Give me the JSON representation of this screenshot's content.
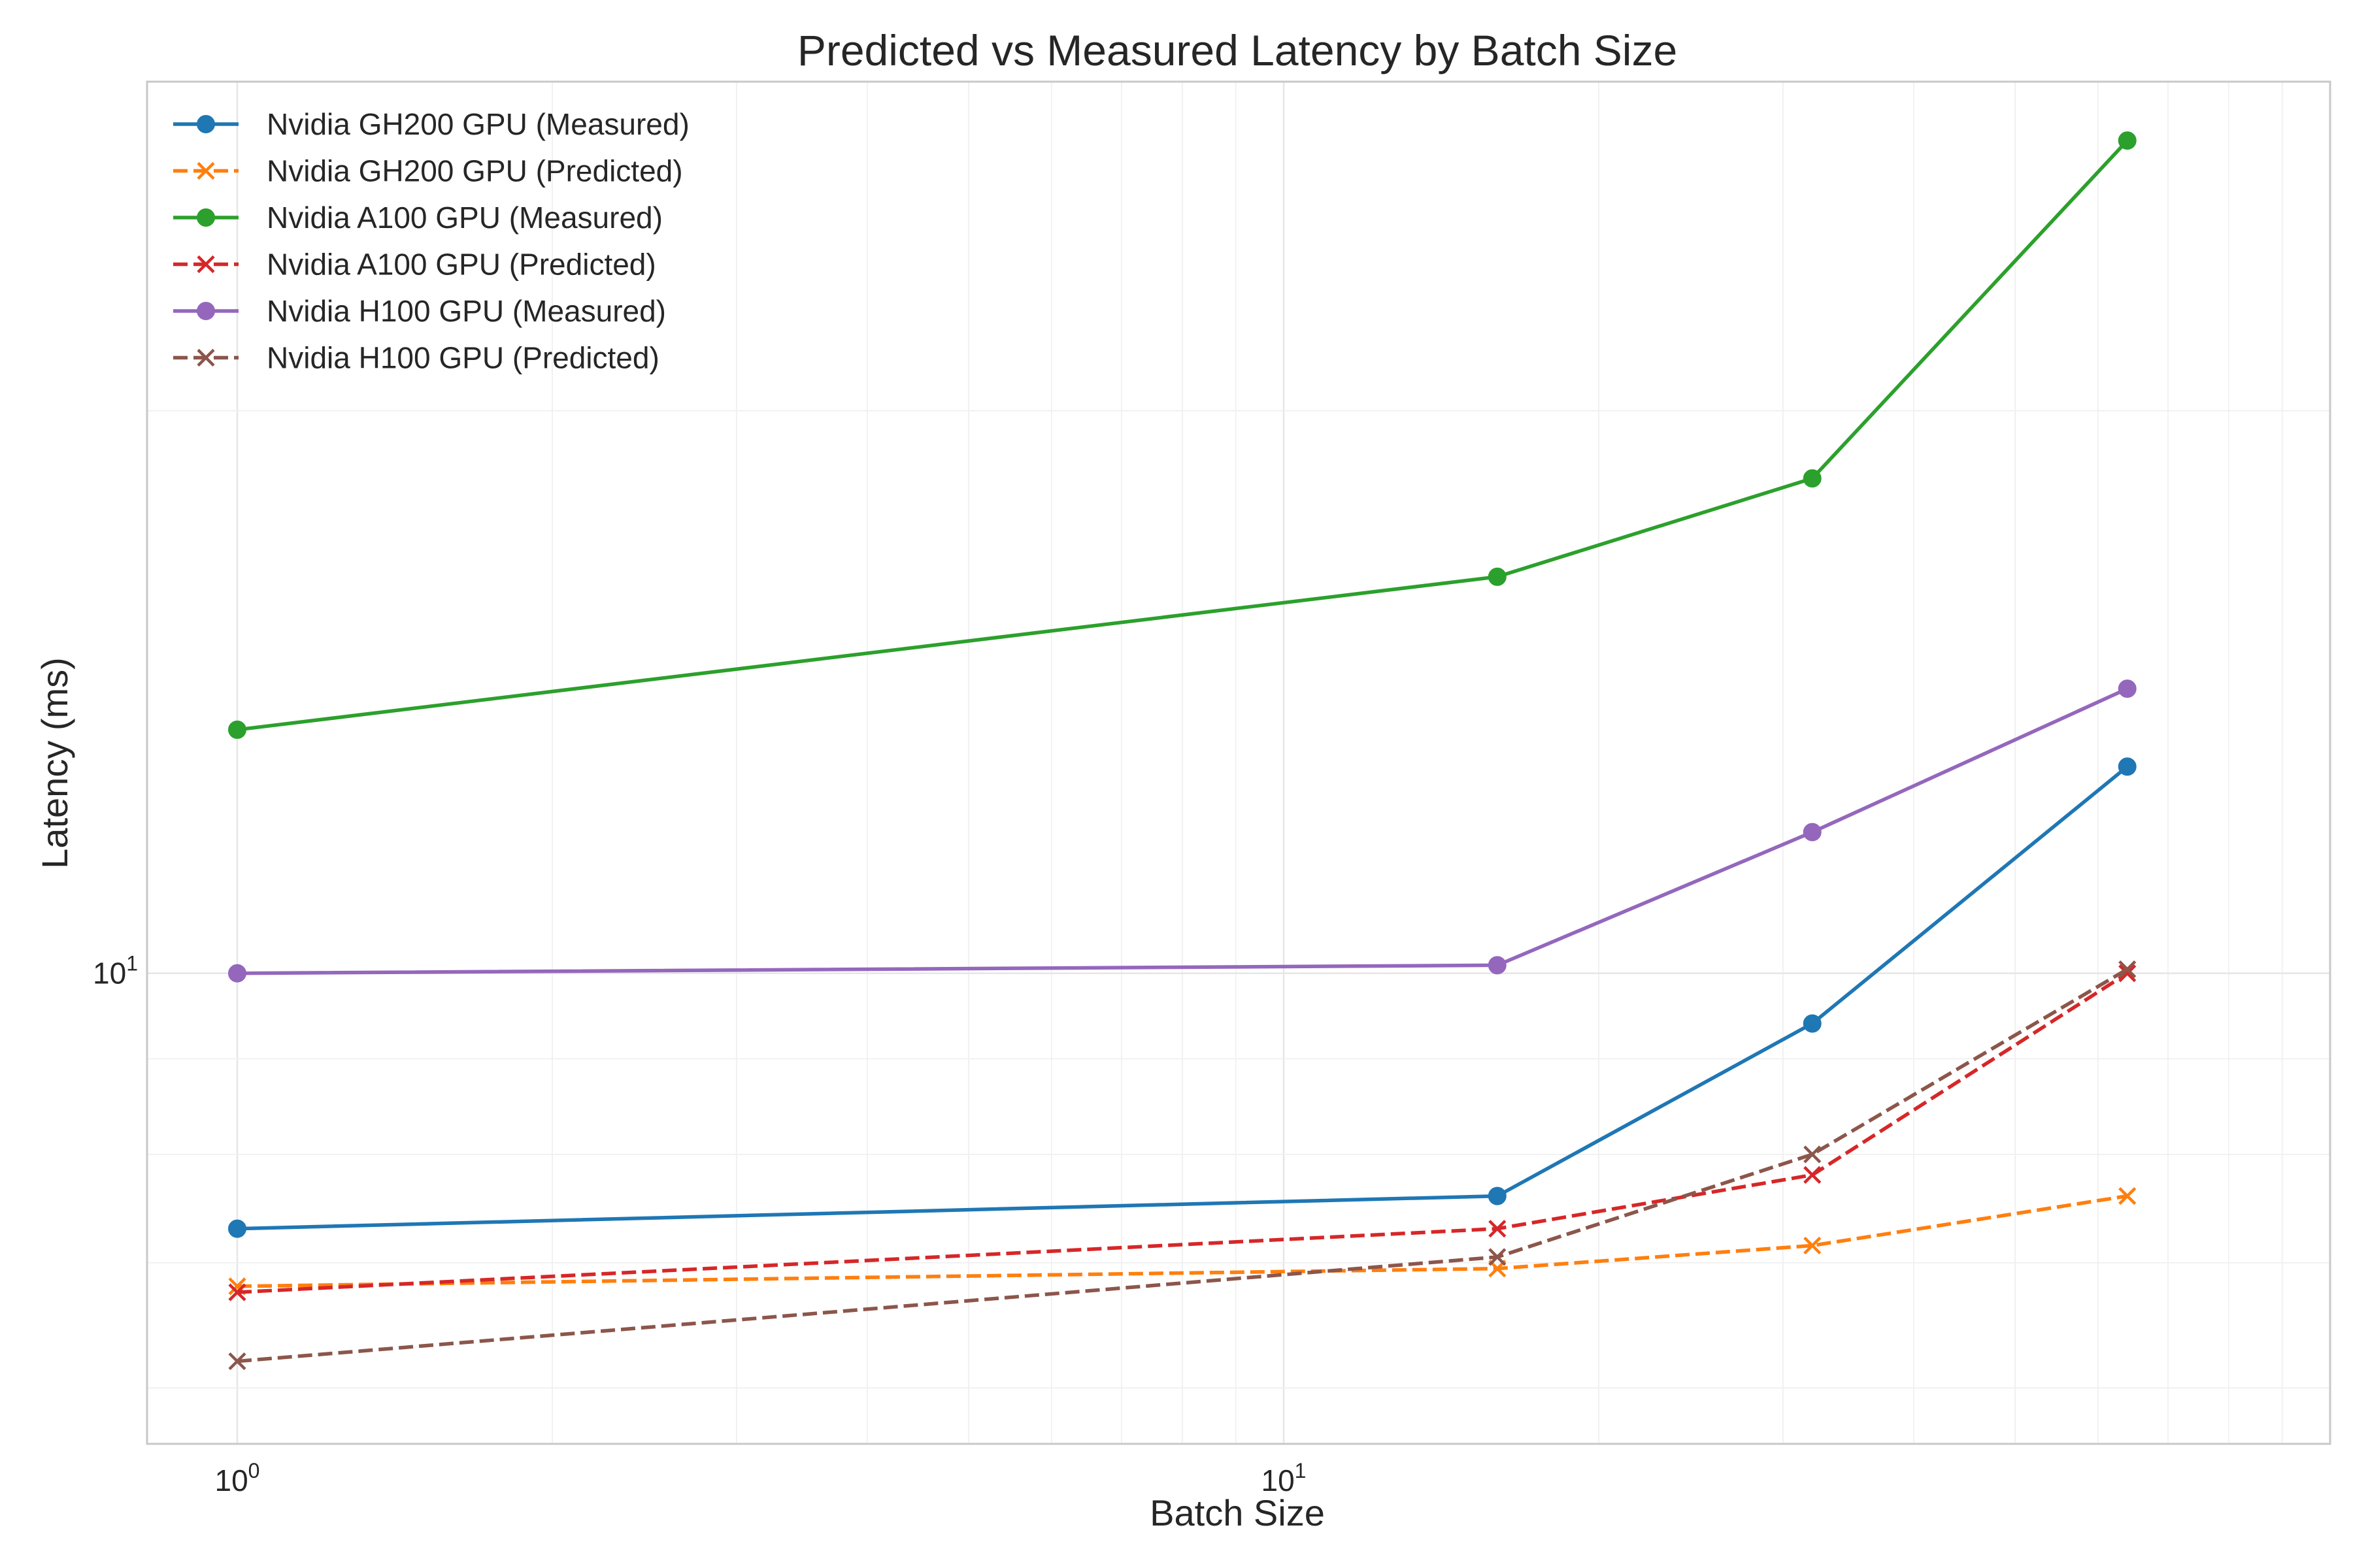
{
  "chart_data": {
    "type": "line",
    "title": "Predicted vs Measured Latency by Batch Size",
    "xlabel": "Batch Size",
    "ylabel": "Latency (ms)",
    "xscale": "log",
    "yscale": "log",
    "xlim": [
      0.82,
      100
    ],
    "ylim": [
      5.6,
      30
    ],
    "x_tick_labels": [
      {
        "value": 1,
        "base": "10",
        "exp": "0"
      },
      {
        "value": 10,
        "base": "10",
        "exp": "1"
      }
    ],
    "y_tick_labels": [
      {
        "value": 10,
        "base": "10",
        "exp": "1"
      }
    ],
    "grid": true,
    "legend_position": "top-left",
    "x": [
      1,
      16,
      32,
      64
    ],
    "series": [
      {
        "name": "Nvidia GH200 GPU (Measured)",
        "color": "#1f77b4",
        "linestyle": "solid",
        "marker": "circle",
        "values": [
          7.3,
          7.6,
          9.4,
          12.9
        ]
      },
      {
        "name": "Nvidia GH200 GPU (Predicted)",
        "color": "#ff7f0e",
        "linestyle": "dashed",
        "marker": "x",
        "values": [
          6.8,
          6.95,
          7.15,
          7.6
        ]
      },
      {
        "name": "Nvidia A100 GPU (Measured)",
        "color": "#2ca02c",
        "linestyle": "solid",
        "marker": "circle",
        "values": [
          13.5,
          16.3,
          18.4,
          27.9
        ]
      },
      {
        "name": "Nvidia A100 GPU (Predicted)",
        "color": "#d62728",
        "linestyle": "dashed",
        "marker": "x",
        "values": [
          6.75,
          7.3,
          7.8,
          10.0
        ]
      },
      {
        "name": "Nvidia H100 GPU (Measured)",
        "color": "#9467bd",
        "linestyle": "solid",
        "marker": "circle",
        "values": [
          10.0,
          10.1,
          11.9,
          14.2
        ]
      },
      {
        "name": "Nvidia H100 GPU (Predicted)",
        "color": "#8c564b",
        "linestyle": "dashed",
        "marker": "x",
        "values": [
          6.2,
          7.05,
          8.0,
          10.05
        ]
      }
    ]
  }
}
